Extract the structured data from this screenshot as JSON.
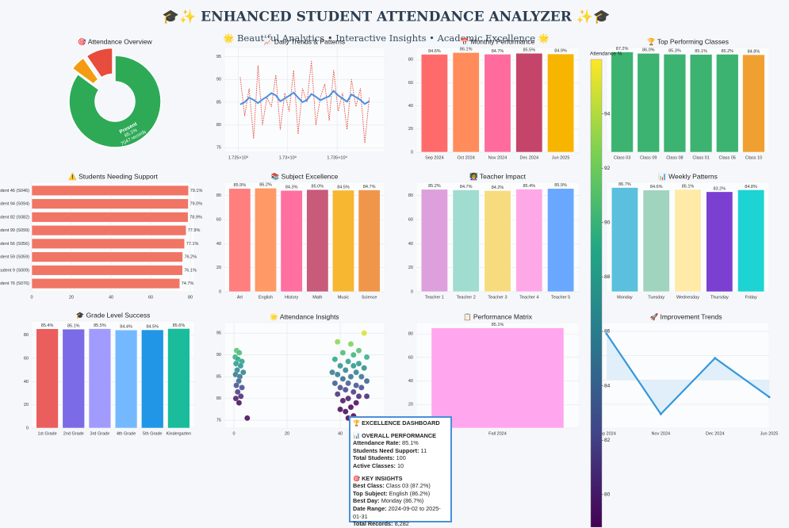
{
  "title": "🎓✨ ENHANCED STUDENT ATTENDANCE ANALYZER ✨🎓",
  "subtitle": "🌟 Beautiful Analytics • Interactive Insights • Academic Excellence 🌟",
  "chart_data": [
    {
      "type": "pie",
      "title": "🎯 Attendance Overview",
      "categories": [
        "Present",
        null,
        null
      ],
      "values": [
        85.1,
        5.3,
        9.6
      ],
      "value_labels": [
        "85.1%",
        null,
        null
      ],
      "annotation": "7047 records",
      "colors": [
        "#2eaa57",
        "#f39c12",
        "#e74c3c"
      ]
    },
    {
      "type": "line",
      "title": "📈 Daily Trends & Patterns",
      "x": [
        1725200000,
        1725650000,
        1726100000,
        1726550000,
        1727000000,
        1727450000,
        1727900000,
        1728350000,
        1728800000,
        1729250000,
        1729700000,
        1730150000,
        1730600000,
        1731050000,
        1731500000,
        1731950000,
        1732400000,
        1732850000,
        1733300000,
        1733750000,
        1734200000,
        1734650000,
        1735100000,
        1735550000,
        1736000000,
        1736450000,
        1736900000,
        1737350000,
        1737800000,
        1738250000
      ],
      "series": [
        {
          "color": "#e74c3c",
          "style": "dotted",
          "values": [
            90.5,
            82,
            88,
            77,
            93,
            80,
            86,
            84,
            91,
            79,
            87,
            83,
            92,
            78,
            88,
            85,
            94,
            80,
            86,
            89,
            81,
            92,
            83,
            87,
            79,
            90,
            84,
            88,
            76,
            86
          ]
        },
        {
          "color": "#4a90e2",
          "values": [
            84.5,
            85,
            86,
            85.5,
            84.8,
            85.6,
            86.2,
            87,
            86.5,
            85.2,
            85.8,
            86.4,
            87.1,
            86,
            85,
            85.5,
            86.8,
            86.2,
            85.4,
            85.9,
            86.3,
            87.5,
            86.5,
            85.8,
            85.1,
            86.7,
            86.1,
            85.5,
            84.6,
            85.2
          ]
        }
      ],
      "xlim": [
        1723600000,
        1739800000
      ],
      "xticks": [
        {
          "value": 1725000000,
          "label": "1.725×10⁹"
        },
        {
          "value": 1730000000,
          "label": "1.73×10⁹"
        },
        {
          "value": 1735000000,
          "label": "1.735×10⁹"
        }
      ],
      "ylim": [
        74,
        97
      ],
      "yticks": [
        75,
        80,
        85,
        90,
        95
      ],
      "grid": true
    },
    {
      "type": "bar",
      "title": "📅 Monthly Performance",
      "categories": [
        "Sep 2024",
        "Oct 2024",
        "Nov 2024",
        "Dec 2024",
        "Jun 2025"
      ],
      "values": [
        84.6,
        86.1,
        84.7,
        85.5,
        84.9
      ],
      "value_labels": [
        "84.6%",
        "86.1%",
        "84.7%",
        "85.5%",
        "84.9%"
      ],
      "colors": [
        "#ff6b6b",
        "#ff8c5a",
        "#ff6b9d",
        "#c44569",
        "#f8b500"
      ],
      "ylim": [
        0,
        90.4
      ],
      "yticks": [
        0,
        20,
        40,
        60,
        80
      ],
      "grid": true
    },
    {
      "type": "bar",
      "title": "🏆 Top Performing Classes",
      "categories": [
        "Class 03",
        "Class 09",
        "Class 08",
        "Class 01",
        "Class 05",
        "Class 10"
      ],
      "values": [
        87.2,
        86.0,
        85.3,
        85.1,
        85.2,
        84.8
      ],
      "value_labels": [
        "87.2%",
        "86.0%",
        "85.3%",
        "85.1%",
        "85.2%",
        "84.8%"
      ],
      "colors": [
        "#3cb371",
        "#3cb371",
        "#3cb371",
        "#3cb371",
        "#3cb371",
        "#f0a030"
      ],
      "ylim": [
        0,
        91
      ],
      "grid": true
    },
    {
      "type": "barh",
      "title": "⚠️ Students Needing Support",
      "categories": [
        "Student 46 (S046)",
        "Student 94 (S094)",
        "Student 82 (S082)",
        "Student 99 (S099)",
        "Student 56 (S056)",
        "Student 59 (S059)",
        "Student 9 (S009)",
        "Student 76 (S076)"
      ],
      "values": [
        79.1,
        79.0,
        78.9,
        77.9,
        77.1,
        76.2,
        76.1,
        74.7
      ],
      "value_labels": [
        "79.1%",
        "79.0%",
        "78.9%",
        "77.9%",
        "77.1%",
        "76.2%",
        "76.1%",
        "74.7%"
      ],
      "color": "#f07565",
      "xlim": [
        0,
        82
      ],
      "xticks": [
        0,
        20,
        40,
        60,
        80
      ],
      "grid": true
    },
    {
      "type": "bar",
      "title": "📚 Subject Excellence",
      "categories": [
        "Art",
        "English",
        "History",
        "Math",
        "Music",
        "Science"
      ],
      "values": [
        85.9,
        86.2,
        84.3,
        85.0,
        84.5,
        84.7
      ],
      "value_labels": [
        "85.9%",
        "86.2%",
        "84.3%",
        "85.0%",
        "84.5%",
        "84.7%"
      ],
      "colors": [
        "#ff7f7f",
        "#ff9966",
        "#ff6fa0",
        "#c85a7a",
        "#f7b731",
        "#f0964a"
      ],
      "ylim": [
        0,
        91
      ],
      "yticks": [
        0,
        20,
        40,
        60,
        80
      ],
      "grid": true
    },
    {
      "type": "bar",
      "title": "👩‍🏫 Teacher Impact",
      "categories": [
        "Teacher 1",
        "Teacher 2",
        "Teacher 3",
        "Teacher 4",
        "Teacher 5"
      ],
      "values": [
        85.2,
        84.7,
        84.2,
        85.4,
        85.9
      ],
      "value_labels": [
        "85.2%",
        "84.7%",
        "84.2%",
        "85.4%",
        "85.9%"
      ],
      "colors": [
        "#dda0dd",
        "#a0dcd0",
        "#f7dc7f",
        "#ffa8e8",
        "#6aa8ff"
      ],
      "ylim": [
        0,
        91
      ],
      "yticks": [
        0,
        20,
        40,
        60,
        80
      ],
      "grid": true
    },
    {
      "type": "bar",
      "title": "📊 Weekly Patterns",
      "categories": [
        "Monday",
        "Tuesday",
        "Wednesday",
        "Thursday",
        "Friday"
      ],
      "values": [
        86.7,
        84.6,
        85.1,
        83.2,
        84.8
      ],
      "value_labels": [
        "86.7%",
        "84.6%",
        "85.1%",
        "83.2%",
        "84.8%"
      ],
      "colors": [
        "#5bc0de",
        "#a0d4be",
        "#ffeaa7",
        "#7b3fd1",
        "#1dd3d3"
      ],
      "ylim": [
        0,
        91
      ],
      "grid": true
    },
    {
      "type": "bar",
      "title": "🎓 Grade Level Success",
      "categories": [
        "1st Grade",
        "2nd Grade",
        "3rd Grade",
        "4th Grade",
        "5th Grade",
        "Kindergarten"
      ],
      "values": [
        85.4,
        85.1,
        85.5,
        84.4,
        84.5,
        85.6
      ],
      "value_labels": [
        "85.4%",
        "85.1%",
        "85.5%",
        "84.4%",
        "84.5%",
        "85.6%"
      ],
      "colors": [
        "#eb5e5e",
        "#7b6be6",
        "#a29bfe",
        "#74b9ff",
        "#2196e6",
        "#1abc9c"
      ],
      "ylim": [
        0,
        92
      ],
      "yticks": [
        0,
        20,
        40,
        60,
        80
      ],
      "grid": true
    },
    {
      "type": "scatter",
      "title": "🌟 Attendance Insights",
      "x": [
        1,
        2,
        0.5,
        1.5,
        3,
        0.8,
        2.5,
        1.2,
        3.5,
        0.6,
        2.2,
        1.8,
        0.9,
        3,
        1.4,
        2.6,
        0.7,
        1.9,
        5,
        39,
        44,
        49,
        47,
        41,
        45,
        50,
        38,
        43,
        47,
        40,
        45,
        49,
        42,
        37,
        46,
        39,
        44,
        48,
        41,
        50,
        38,
        43,
        46,
        40,
        48,
        42,
        45,
        39,
        47,
        43,
        50,
        41,
        46,
        44,
        40,
        42,
        45,
        43
      ],
      "values": [
        91,
        90.5,
        89.5,
        89,
        88.5,
        88,
        87.5,
        86.5,
        86,
        85.5,
        85,
        84,
        83,
        82.5,
        81.5,
        80.5,
        80,
        79,
        75.5,
        93,
        92.5,
        95,
        91,
        90.5,
        90,
        89.5,
        89,
        88.5,
        88,
        87.5,
        87.5,
        87,
        86.5,
        86,
        86,
        85.5,
        85,
        85,
        84.5,
        84,
        83.5,
        83.5,
        83,
        82.5,
        82.5,
        82,
        81.5,
        81,
        80.5,
        80,
        80.5,
        79.5,
        79,
        78,
        77.5,
        77,
        76,
        75.5
      ],
      "xlim": [
        -3.6,
        56.7
      ],
      "xticks": [
        0,
        20,
        40
      ],
      "ylim": [
        73.2,
        97.4
      ],
      "yticks": [
        75,
        80,
        85,
        90,
        95
      ],
      "grid": true,
      "colormap": "viridis",
      "colorbar": {
        "label": "Attendance %",
        "lim": [
          78.8,
          96
        ],
        "ticks": [
          80,
          82,
          84,
          86,
          88,
          90,
          92,
          94
        ]
      }
    },
    {
      "type": "bar",
      "title": "📋 Performance Matrix",
      "categories": [
        "Fall 2024"
      ],
      "values": [
        85.1
      ],
      "value_labels": [
        "85.1%"
      ],
      "colors": [
        "#ffa6ef"
      ],
      "ylim": [
        0,
        89.5
      ],
      "yticks": [
        0,
        20,
        40,
        60,
        80
      ],
      "grid": true
    },
    {
      "type": "area",
      "title": "🚀 Improvement Trends",
      "categories": [
        "Sep 2024",
        "Nov 2024",
        "Dec 2024",
        "Jun 2025"
      ],
      "values": [
        1.9,
        -1.4,
        0.9,
        -0.7
      ],
      "color": "#3498db",
      "fill": "#d6eaf8",
      "ylim": [
        -1.98,
        2.36
      ],
      "yticks": [
        -1,
        0,
        1,
        2
      ],
      "grid": true
    }
  ],
  "summary": {
    "title": "🏆 EXCELLENCE DASHBOARD",
    "sections": [
      {
        "heading": "📊 OVERALL PERFORMANCE",
        "items": [
          {
            "label": "Attendance Rate:",
            "value": "85.1%"
          },
          {
            "label": "Students Need Support:",
            "value": "11"
          },
          {
            "label": "Total Students:",
            "value": "100"
          },
          {
            "label": "Active Classes:",
            "value": "10"
          }
        ]
      },
      {
        "heading": "🎯 KEY INSIGHTS",
        "items": [
          {
            "label": "Best Class:",
            "value": "Class 03 (87.2%)"
          },
          {
            "label": "Top Subject:",
            "value": "English (86.2%)"
          },
          {
            "label": "Best Day:",
            "value": "Monday (86.7%)"
          },
          {
            "label": "Date Range:",
            "value": "2024-09-02 to 2025-01-31"
          },
          {
            "label": "Total Records:",
            "value": "8,282"
          }
        ]
      }
    ]
  }
}
